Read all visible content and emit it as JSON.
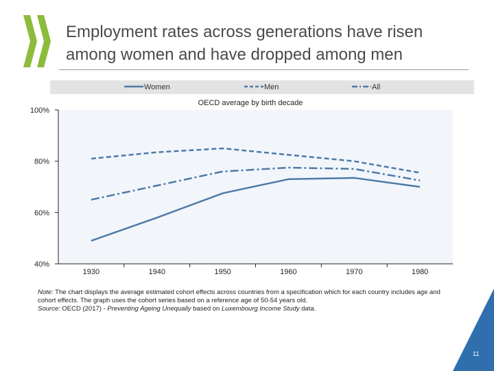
{
  "slide": {
    "title_line1": "Employment rates across generations have risen",
    "title_line2": "among women and have dropped among men",
    "page_number": "11",
    "colors": {
      "line": "#4e79a7",
      "plot_bg": "#f2f6fb",
      "corner": "#2f6fae",
      "logo": "#8dbb3c"
    }
  },
  "note": {
    "note_label": "Note:",
    "note_text": " The chart displays the average estimated cohort effects across countries from a specification which for each country includes age and cohort effects. The graph uses the cohort series based on a reference age of 50-54 years old.",
    "source_label": "Source:",
    "source_prefix": " OECD (2017) - ",
    "source_title": "Preventing Ageing Unequally",
    "source_mid": " based on ",
    "source_title2": "Luxembourg Income Study",
    "source_end": " data."
  },
  "chart_data": {
    "type": "line",
    "title": "OECD average by birth decade",
    "categories": [
      "1930",
      "1940",
      "1950",
      "1960",
      "1970",
      "1980"
    ],
    "series": [
      {
        "name": "Women",
        "values": [
          49,
          58,
          67.5,
          73,
          73.5,
          70
        ],
        "dash": "solid"
      },
      {
        "name": "Men",
        "values": [
          81,
          83.5,
          85,
          82.5,
          80,
          75.5
        ],
        "dash": "dashed"
      },
      {
        "name": "All",
        "values": [
          65,
          70.5,
          76,
          77.5,
          77,
          72.5
        ],
        "dash": "dash-dot"
      }
    ],
    "y_tick_labels": [
      "40%",
      "60%",
      "80%",
      "100%"
    ],
    "y_ticks": [
      40,
      60,
      80,
      100
    ],
    "ylim": [
      40,
      100
    ],
    "legend_position": "top",
    "grid": false
  }
}
